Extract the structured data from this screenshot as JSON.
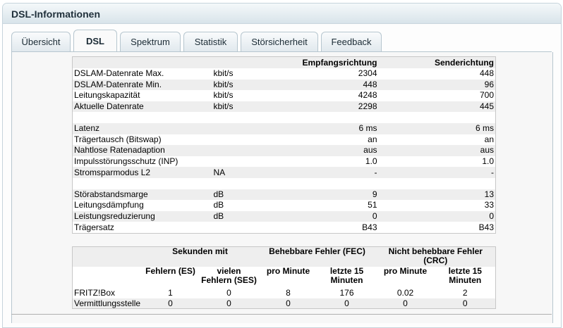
{
  "panel": {
    "title": "DSL-Informationen"
  },
  "tabs": [
    {
      "label": "Übersicht",
      "active": false
    },
    {
      "label": "DSL",
      "active": true
    },
    {
      "label": "Spektrum",
      "active": false
    },
    {
      "label": "Statistik",
      "active": false
    },
    {
      "label": "Störsicherheit",
      "active": false
    },
    {
      "label": "Feedback",
      "active": false
    }
  ],
  "dsl_table": {
    "headers": {
      "label": "",
      "unit": "",
      "rx": "Empfangsrichtung",
      "tx": "Senderichtung"
    },
    "rows": [
      {
        "label": "DSLAM-Datenrate Max.",
        "unit": "kbit/s",
        "rx": "2304",
        "tx": "448"
      },
      {
        "label": "DSLAM-Datenrate Min.",
        "unit": "kbit/s",
        "rx": "448",
        "tx": "96"
      },
      {
        "label": "Leitungskapazität",
        "unit": "kbit/s",
        "rx": "4248",
        "tx": "700"
      },
      {
        "label": "Aktuelle Datenrate",
        "unit": "kbit/s",
        "rx": "2298",
        "tx": "445"
      },
      {
        "label": "",
        "unit": "",
        "rx": "",
        "tx": ""
      },
      {
        "label": "Latenz",
        "unit": "",
        "rx": "6 ms",
        "tx": "6 ms"
      },
      {
        "label": "Trägertausch (Bitswap)",
        "unit": "",
        "rx": "an",
        "tx": "an"
      },
      {
        "label": "Nahtlose Ratenadaption",
        "unit": "",
        "rx": "aus",
        "tx": "aus"
      },
      {
        "label": "Impulsstörungsschutz (INP)",
        "unit": "",
        "rx": "1.0",
        "tx": "1.0"
      },
      {
        "label": "Stromsparmodus L2",
        "unit": "NA",
        "rx": "-",
        "tx": "-"
      },
      {
        "label": "",
        "unit": "",
        "rx": "",
        "tx": ""
      },
      {
        "label": "Störabstandsmarge",
        "unit": "dB",
        "rx": "9",
        "tx": "13"
      },
      {
        "label": "Leitungsdämpfung",
        "unit": "dB",
        "rx": "51",
        "tx": "33"
      },
      {
        "label": "Leistungsreduzierung",
        "unit": "dB",
        "rx": "0",
        "tx": "0"
      },
      {
        "label": "Trägersatz",
        "unit": "",
        "rx": "B43",
        "tx": "B43"
      }
    ]
  },
  "error_table": {
    "groups": {
      "seconds": "Sekunden mit",
      "fec": "Behebbare Fehler (FEC)",
      "crc": "Nicht behebbare Fehler (CRC)"
    },
    "subheaders": {
      "es": "Fehlern (ES)",
      "ses": "vielen Fehlern (SES)",
      "fec_per_min": "pro Minute",
      "fec_last15": "letzte 15 Minuten",
      "crc_per_min": "pro Minute",
      "crc_last15": "letzte 15 Minuten"
    },
    "rows": [
      {
        "label": "FRITZ!Box",
        "es": "1",
        "ses": "0",
        "fec_per_min": "8",
        "fec_last15": "176",
        "crc_per_min": "0.02",
        "crc_last15": "2"
      },
      {
        "label": "Vermittlungsstelle",
        "es": "0",
        "ses": "0",
        "fec_per_min": "0",
        "fec_last15": "0",
        "crc_per_min": "0",
        "crc_last15": "0"
      }
    ]
  }
}
